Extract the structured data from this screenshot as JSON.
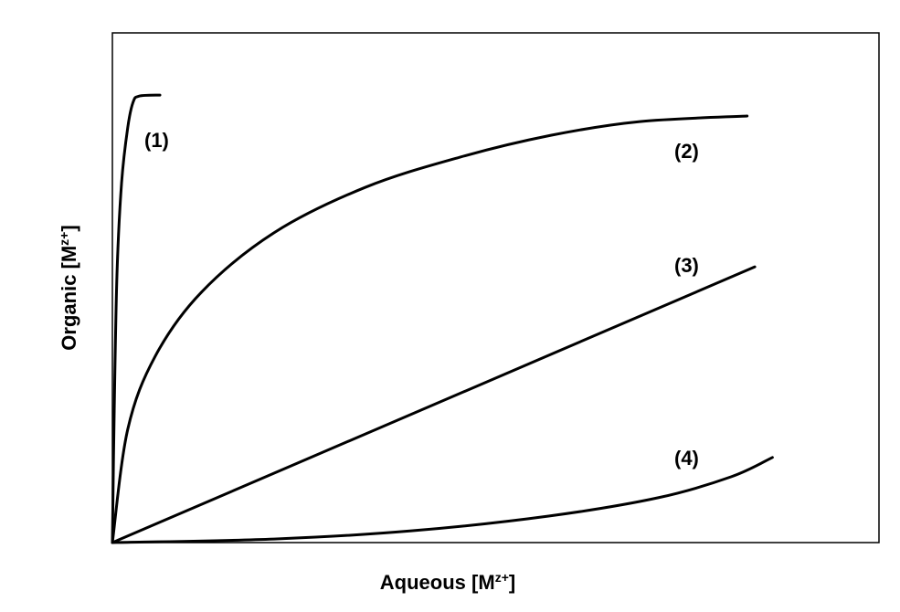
{
  "chart_data": {
    "type": "line",
    "x_label": [
      "Aqueous [M",
      "z+",
      "]"
    ],
    "y_label": [
      "Organic [M",
      "z+",
      "]"
    ],
    "xlim": [
      0,
      100
    ],
    "ylim": [
      0,
      100
    ],
    "series": [
      {
        "name": "(1)",
        "color": "#000000",
        "x": [
          0,
          0.24,
          0.6,
          1.2,
          2.0,
          2.7,
          3.5,
          6.2
        ],
        "values": [
          0,
          25.8,
          52.7,
          70.6,
          81.4,
          86.4,
          87.6,
          87.8
        ]
      },
      {
        "name": "(2)",
        "color": "#000000",
        "x": [
          0,
          2.0,
          5.6,
          11.6,
          21.1,
          33.0,
          45.3,
          57.2,
          68.8,
          82.8
        ],
        "values": [
          0,
          22.2,
          36.6,
          49.1,
          60.8,
          69.7,
          75.6,
          79.9,
          82.6,
          83.7
        ]
      },
      {
        "name": "(3)",
        "color": "#000000",
        "x": [
          0,
          83.8
        ],
        "values": [
          0,
          54.1
        ]
      },
      {
        "name": "(4)",
        "color": "#000000",
        "x": [
          0,
          21.1,
          39.0,
          56.9,
          71.2,
          80.7,
          86.1
        ],
        "values": [
          0,
          0.7,
          2.3,
          5.2,
          8.8,
          12.9,
          16.7
        ]
      }
    ]
  }
}
